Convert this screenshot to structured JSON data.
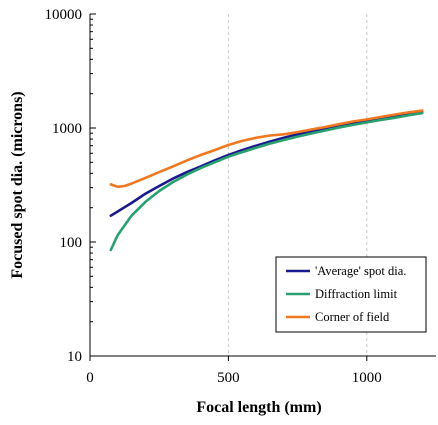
{
  "chart_data": {
    "type": "line",
    "title": "",
    "xlabel": "Focal length (mm)",
    "ylabel": "Focused spot dia. (microns)",
    "xlim": [
      0,
      1250
    ],
    "ylim": [
      10,
      10000
    ],
    "yscale": "log",
    "x_ticks": [
      0,
      500,
      1000
    ],
    "y_ticks": [
      10,
      100,
      1000,
      10000
    ],
    "grid": "vertical dashed at 500 and 1000",
    "legend_position": "bottom-right",
    "series": [
      {
        "name": "'Average' spot dia.",
        "color": "#1a1a8c",
        "x": [
          75,
          100,
          150,
          200,
          250,
          300,
          350,
          400,
          450,
          500,
          550,
          600,
          650,
          700,
          750,
          800,
          850,
          900,
          950,
          1000,
          1050,
          1100,
          1150,
          1200
        ],
        "y": [
          170,
          185,
          220,
          265,
          310,
          360,
          410,
          460,
          520,
          580,
          640,
          700,
          760,
          820,
          880,
          930,
          990,
          1050,
          1110,
          1170,
          1230,
          1290,
          1340,
          1380
        ]
      },
      {
        "name": "Diffraction limit",
        "color": "#2aa070",
        "x": [
          75,
          100,
          150,
          200,
          250,
          300,
          350,
          400,
          450,
          500,
          550,
          600,
          650,
          700,
          750,
          800,
          850,
          900,
          950,
          1000,
          1050,
          1100,
          1150,
          1200
        ],
        "y": [
          85,
          115,
          170,
          225,
          280,
          335,
          390,
          445,
          500,
          560,
          615,
          670,
          730,
          785,
          840,
          895,
          950,
          1010,
          1065,
          1120,
          1175,
          1230,
          1290,
          1350
        ]
      },
      {
        "name": "Corner of field",
        "color": "#f07820",
        "x": [
          75,
          100,
          125,
          150,
          200,
          250,
          300,
          350,
          400,
          450,
          500,
          550,
          600,
          650,
          700,
          750,
          800,
          850,
          900,
          950,
          1000,
          1050,
          1100,
          1150,
          1200
        ],
        "y": [
          320,
          305,
          310,
          325,
          365,
          410,
          460,
          520,
          580,
          640,
          710,
          770,
          820,
          860,
          880,
          920,
          970,
          1020,
          1080,
          1140,
          1190,
          1250,
          1310,
          1370,
          1420
        ]
      }
    ]
  }
}
